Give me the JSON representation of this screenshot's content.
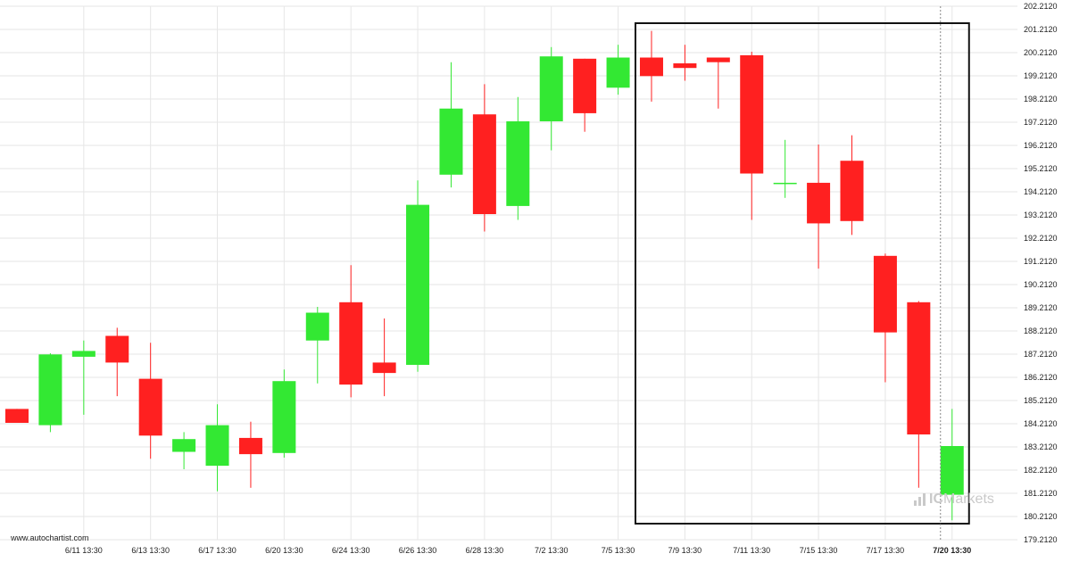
{
  "watermark": "www.autochartist.com",
  "brand": {
    "prefix": "IC",
    "name": "Markets"
  },
  "colors": {
    "bull": "#33e833",
    "bear": "#ff2020",
    "grid": "#e6e6e6",
    "box": "#111111"
  },
  "chart_data": {
    "type": "candlestick",
    "y_axis": {
      "range": [
        179.212,
        202.212
      ],
      "ticks": [
        "179.2120",
        "180.2120",
        "181.2120",
        "182.2120",
        "183.2120",
        "184.2120",
        "185.2120",
        "186.2120",
        "187.2120",
        "188.2120",
        "189.2120",
        "190.2120",
        "191.2120",
        "192.2120",
        "193.2120",
        "194.2120",
        "195.2120",
        "196.2120",
        "197.2120",
        "198.2120",
        "199.2120",
        "200.2120",
        "201.2120",
        "202.2120"
      ]
    },
    "x_axis": {
      "labels": [
        {
          "text": "6/11 13:30",
          "index": 2,
          "bold": false
        },
        {
          "text": "6/13 13:30",
          "index": 4,
          "bold": false
        },
        {
          "text": "6/17 13:30",
          "index": 6,
          "bold": false
        },
        {
          "text": "6/20 13:30",
          "index": 8,
          "bold": false
        },
        {
          "text": "6/24 13:30",
          "index": 10,
          "bold": false
        },
        {
          "text": "6/26 13:30",
          "index": 12,
          "bold": false
        },
        {
          "text": "6/28 13:30",
          "index": 14,
          "bold": false
        },
        {
          "text": "7/2 13:30",
          "index": 16,
          "bold": false
        },
        {
          "text": "7/5 13:30",
          "index": 18,
          "bold": false
        },
        {
          "text": "7/9 13:30",
          "index": 20,
          "bold": false
        },
        {
          "text": "7/11 13:30",
          "index": 22,
          "bold": false
        },
        {
          "text": "7/15 13:30",
          "index": 24,
          "bold": false
        },
        {
          "text": "7/17 13:30",
          "index": 26,
          "bold": false
        },
        {
          "text": "7/20 13:30",
          "index": 28,
          "bold": true
        }
      ]
    },
    "grid": true,
    "candles": [
      {
        "o": 184.85,
        "h": 184.85,
        "l": 184.25,
        "c": 184.25
      },
      {
        "o": 184.15,
        "h": 187.25,
        "l": 183.85,
        "c": 187.2
      },
      {
        "o": 187.1,
        "h": 187.8,
        "l": 184.6,
        "c": 187.35
      },
      {
        "o": 188.0,
        "h": 188.35,
        "l": 185.4,
        "c": 186.85
      },
      {
        "o": 186.15,
        "h": 187.7,
        "l": 182.7,
        "c": 183.7
      },
      {
        "o": 183.0,
        "h": 183.85,
        "l": 182.25,
        "c": 183.55
      },
      {
        "o": 182.4,
        "h": 185.05,
        "l": 181.3,
        "c": 184.15
      },
      {
        "o": 183.6,
        "h": 184.3,
        "l": 181.45,
        "c": 182.9
      },
      {
        "o": 182.95,
        "h": 186.55,
        "l": 182.75,
        "c": 186.05
      },
      {
        "o": 187.8,
        "h": 189.25,
        "l": 185.95,
        "c": 189.0
      },
      {
        "o": 189.45,
        "h": 191.05,
        "l": 185.35,
        "c": 185.9
      },
      {
        "o": 186.85,
        "h": 188.75,
        "l": 185.4,
        "c": 186.4
      },
      {
        "o": 186.75,
        "h": 194.7,
        "l": 186.45,
        "c": 193.65
      },
      {
        "o": 194.95,
        "h": 199.8,
        "l": 194.4,
        "c": 197.8
      },
      {
        "o": 197.55,
        "h": 198.85,
        "l": 192.5,
        "c": 193.25
      },
      {
        "o": 193.6,
        "h": 198.3,
        "l": 193.0,
        "c": 197.25
      },
      {
        "o": 197.25,
        "h": 200.45,
        "l": 196.0,
        "c": 200.05
      },
      {
        "o": 199.95,
        "h": 199.95,
        "l": 196.8,
        "c": 197.6
      },
      {
        "o": 198.7,
        "h": 200.55,
        "l": 198.4,
        "c": 200.0
      },
      {
        "o": 200.0,
        "h": 201.15,
        "l": 198.1,
        "c": 199.2
      },
      {
        "o": 199.75,
        "h": 200.55,
        "l": 199.0,
        "c": 199.55
      },
      {
        "o": 200.0,
        "h": 200.0,
        "l": 197.8,
        "c": 199.8
      },
      {
        "o": 200.1,
        "h": 200.25,
        "l": 193.0,
        "c": 195.0
      },
      {
        "o": 194.6,
        "h": 196.45,
        "l": 193.95,
        "c": 194.6
      },
      {
        "o": 194.6,
        "h": 196.25,
        "l": 190.9,
        "c": 192.85
      },
      {
        "o": 195.55,
        "h": 196.65,
        "l": 192.35,
        "c": 192.95
      },
      {
        "o": 191.45,
        "h": 191.55,
        "l": 186.0,
        "c": 188.15
      },
      {
        "o": 189.45,
        "h": 189.5,
        "l": 181.45,
        "c": 183.75
      },
      {
        "o": 181.15,
        "h": 184.85,
        "l": 180.05,
        "c": 183.25
      }
    ],
    "highlight_range": {
      "from_index": 19,
      "to_index": 28
    }
  }
}
